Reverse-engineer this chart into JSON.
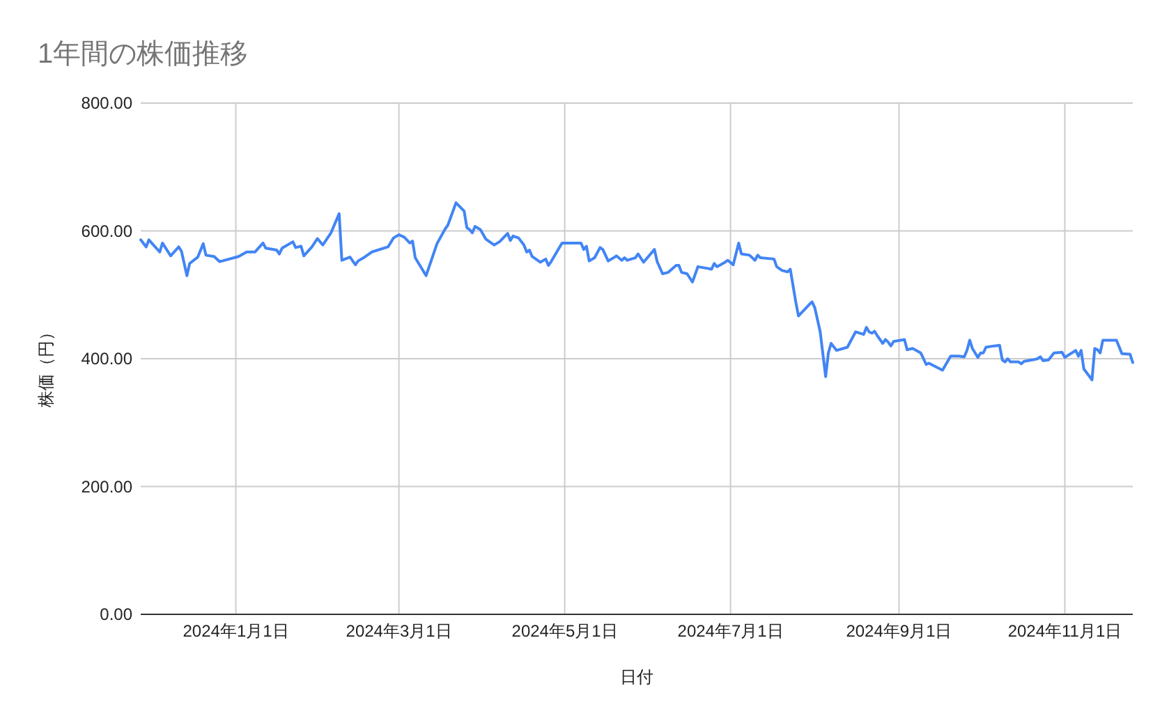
{
  "chart_data": {
    "type": "line",
    "title": "1年間の株価推移",
    "xlabel": "日付",
    "ylabel": "株価（円）",
    "x": [
      "2023-11-27",
      "2023-11-29",
      "2023-11-30",
      "2023-12-04",
      "2023-12-05",
      "2023-12-08",
      "2023-12-11",
      "2023-12-12",
      "2023-12-14",
      "2023-12-15",
      "2023-12-18",
      "2023-12-20",
      "2023-12-21",
      "2023-12-24",
      "2023-12-26",
      "2023-12-27",
      "2024-01-02",
      "2024-01-05",
      "2024-01-08",
      "2024-01-11",
      "2024-01-12",
      "2024-01-16",
      "2024-01-17",
      "2024-01-18",
      "2024-01-22",
      "2024-01-23",
      "2024-01-25",
      "2024-01-26",
      "2024-01-29",
      "2024-01-31",
      "2024-02-02",
      "2024-02-05",
      "2024-02-08",
      "2024-02-09",
      "2024-02-12",
      "2024-02-14",
      "2024-02-15",
      "2024-02-17",
      "2024-02-20",
      "2024-02-26",
      "2024-02-28",
      "2024-03-01",
      "2024-03-03",
      "2024-03-05",
      "2024-03-06",
      "2024-03-07",
      "2024-03-08",
      "2024-03-11",
      "2024-03-13",
      "2024-03-15",
      "2024-03-18",
      "2024-03-19",
      "2024-03-22",
      "2024-03-25",
      "2024-03-26",
      "2024-03-27",
      "2024-03-28",
      "2024-03-29",
      "2024-03-31",
      "2024-04-02",
      "2024-04-05",
      "2024-04-07",
      "2024-04-10",
      "2024-04-11",
      "2024-04-12",
      "2024-04-14",
      "2024-04-16",
      "2024-04-17",
      "2024-04-18",
      "2024-04-19",
      "2024-04-22",
      "2024-04-24",
      "2024-04-25",
      "2024-04-26",
      "2024-04-30",
      "2024-05-07",
      "2024-05-08",
      "2024-05-09",
      "2024-05-10",
      "2024-05-12",
      "2024-05-14",
      "2024-05-15",
      "2024-05-17",
      "2024-05-19",
      "2024-05-20",
      "2024-05-22",
      "2024-05-23",
      "2024-05-24",
      "2024-05-27",
      "2024-05-28",
      "2024-05-30",
      "2024-06-03",
      "2024-06-04",
      "2024-06-06",
      "2024-06-08",
      "2024-06-11",
      "2024-06-12",
      "2024-06-13",
      "2024-06-15",
      "2024-06-17",
      "2024-06-19",
      "2024-06-23",
      "2024-06-24",
      "2024-06-25",
      "2024-06-26",
      "2024-06-29",
      "2024-06-30",
      "2024-07-02",
      "2024-07-04",
      "2024-07-05",
      "2024-07-08",
      "2024-07-10",
      "2024-07-11",
      "2024-07-12",
      "2024-07-17",
      "2024-07-18",
      "2024-07-20",
      "2024-07-22",
      "2024-07-23",
      "2024-07-25",
      "2024-07-26",
      "2024-07-30",
      "2024-07-31",
      "2024-08-01",
      "2024-08-03",
      "2024-08-05",
      "2024-08-06",
      "2024-08-07",
      "2024-08-09",
      "2024-08-13",
      "2024-08-16",
      "2024-08-19",
      "2024-08-20",
      "2024-08-21",
      "2024-08-22",
      "2024-08-23",
      "2024-08-24",
      "2024-08-26",
      "2024-08-27",
      "2024-08-28",
      "2024-08-29",
      "2024-08-30",
      "2024-09-03",
      "2024-09-04",
      "2024-09-06",
      "2024-09-09",
      "2024-09-11",
      "2024-09-12",
      "2024-09-17",
      "2024-09-20",
      "2024-09-23",
      "2024-09-25",
      "2024-09-26",
      "2024-09-27",
      "2024-09-28",
      "2024-09-30",
      "2024-10-01",
      "2024-10-02",
      "2024-10-03",
      "2024-10-06",
      "2024-10-08",
      "2024-10-09",
      "2024-10-10",
      "2024-10-11",
      "2024-10-12",
      "2024-10-15",
      "2024-10-16",
      "2024-10-17",
      "2024-10-20",
      "2024-10-22",
      "2024-10-23",
      "2024-10-24",
      "2024-10-26",
      "2024-10-28",
      "2024-10-31",
      "2024-11-01",
      "2024-11-05",
      "2024-11-06",
      "2024-11-07",
      "2024-11-08",
      "2024-11-11",
      "2024-11-12",
      "2024-11-13",
      "2024-11-14",
      "2024-11-15",
      "2024-11-20",
      "2024-11-22",
      "2024-11-25",
      "2024-11-26"
    ],
    "series": [
      {
        "color": "#4285f4",
        "values": [
          586,
          575,
          586,
          567,
          581,
          561,
          575,
          568,
          530,
          549,
          559,
          580,
          562,
          560,
          552,
          553,
          560,
          567,
          567,
          581,
          573,
          570,
          564,
          573,
          583,
          574,
          576,
          561,
          575,
          588,
          578,
          597,
          627,
          554,
          559,
          547,
          553,
          558,
          567,
          575,
          589,
          594,
          590,
          581,
          584,
          558,
          551,
          530,
          555,
          580,
          603,
          609,
          644,
          631,
          605,
          602,
          597,
          607,
          602,
          587,
          578,
          583,
          596,
          585,
          592,
          589,
          578,
          567,
          570,
          560,
          551,
          556,
          546,
          552,
          581,
          581,
          571,
          576,
          553,
          558,
          574,
          571,
          553,
          558,
          561,
          554,
          558,
          554,
          558,
          564,
          551,
          571,
          552,
          533,
          535,
          546,
          546,
          535,
          533,
          520,
          544,
          541,
          540,
          549,
          544,
          551,
          554,
          547,
          581,
          564,
          562,
          554,
          562,
          558,
          556,
          544,
          538,
          536,
          540,
          489,
          467,
          485,
          489,
          480,
          442,
          372,
          409,
          424,
          413,
          418,
          442,
          438,
          449,
          442,
          440,
          443,
          436,
          424,
          430,
          426,
          420,
          427,
          430,
          414,
          416,
          409,
          391,
          393,
          382,
          404,
          404,
          403,
          413,
          429,
          416,
          402,
          409,
          409,
          418,
          420,
          421,
          398,
          395,
          400,
          395,
          395,
          392,
          396,
          398,
          400,
          403,
          397,
          398,
          409,
          410,
          402,
          413,
          404,
          413,
          384,
          367,
          416,
          414,
          409,
          429,
          429,
          408,
          407,
          394
        ]
      }
    ],
    "xlim": [
      "2023-11-27",
      "2024-11-26"
    ],
    "xticks": [
      {
        "value": "2024-01-01",
        "label": "2024年1月1日"
      },
      {
        "value": "2024-03-01",
        "label": "2024年3月1日"
      },
      {
        "value": "2024-05-01",
        "label": "2024年5月1日"
      },
      {
        "value": "2024-07-01",
        "label": "2024年7月1日"
      },
      {
        "value": "2024-09-01",
        "label": "2024年9月1日"
      },
      {
        "value": "2024-11-01",
        "label": "2024年11月1日"
      }
    ],
    "ylim": [
      0,
      800
    ],
    "yticks": [
      {
        "value": 0,
        "label": "0.00"
      },
      {
        "value": 200,
        "label": "200.00"
      },
      {
        "value": 400,
        "label": "400.00"
      },
      {
        "value": 600,
        "label": "600.00"
      },
      {
        "value": 800,
        "label": "800.00"
      }
    ],
    "grid": true
  }
}
